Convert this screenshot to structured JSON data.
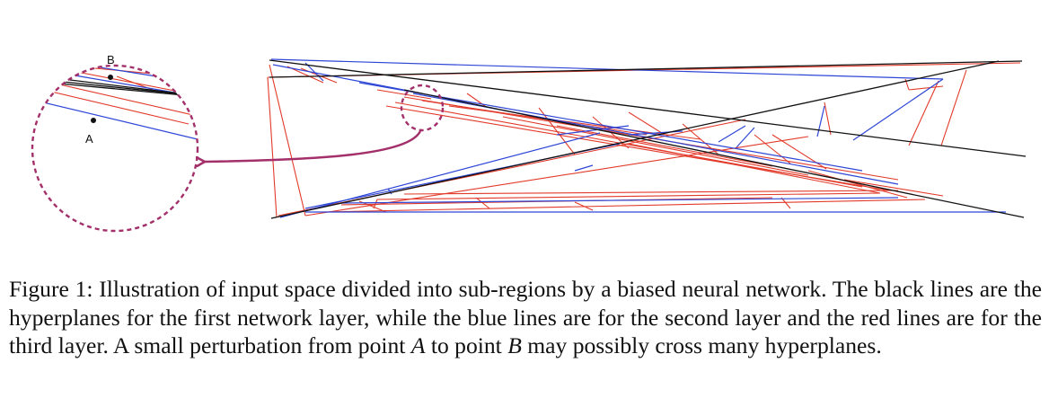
{
  "figure": {
    "point_a_label": "A",
    "point_b_label": "B",
    "colors": {
      "first_layer": "#111111",
      "second_layer": "#2e46d6",
      "third_layer": "#e23a2a",
      "highlight": "#a3306a"
    }
  },
  "caption": {
    "lead": "Figure 1: Illustration of input space divided into sub-regions by a biased neural network. The black lines are the hyperplanes for the first network layer, while the blue lines are for the second layer and the red lines are for the third layer. A small perturbation from point ",
    "point_a": "A",
    "middle": " to point ",
    "point_b": "B",
    "tail": " may possibly cross many hyperplanes."
  }
}
